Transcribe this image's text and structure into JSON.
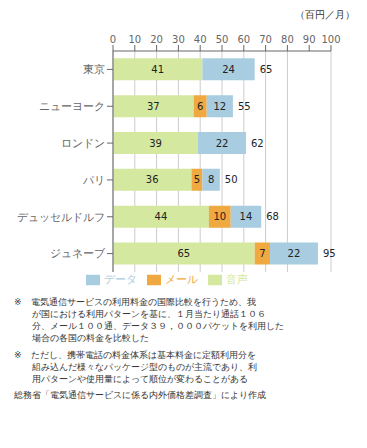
{
  "chart_data": {
    "type": "bar",
    "title": "（百円／月）",
    "orientation": "horizontal",
    "stacked": true,
    "categories": [
      "東京",
      "ニューヨーク",
      "ロンドン",
      "パリ",
      "デュッセルドルフ",
      "ジュネーブ"
    ],
    "series": [
      {
        "name": "音声",
        "color": "#d4e8a0",
        "values": [
          41,
          37,
          39,
          36,
          44,
          65
        ]
      },
      {
        "name": "メール",
        "color": "#f0a840",
        "values": [
          0,
          6,
          0,
          5,
          10,
          7
        ]
      },
      {
        "name": "データ",
        "color": "#a8cce0",
        "values": [
          24,
          12,
          22,
          8,
          14,
          22
        ]
      }
    ],
    "totals": [
      65,
      55,
      62,
      50,
      68,
      95
    ],
    "xlim": [
      0,
      100
    ],
    "xticks": [
      0,
      10,
      20,
      30,
      40,
      50,
      60,
      70,
      80,
      90,
      100
    ],
    "grid": true,
    "legend": "bottom",
    "data_labels": true,
    "footnotes": [
      "※　電気通信サービスの利用料金の国際比較を行うため、我\n　　が国における利用パターンを基に、１月当たり通話１０６\n　　分、メール１００通、データ３９，０００パケットを利用した\n　　場合の各国の料金を比較した",
      "※　ただし、携帯電話の料金体系は基本料金に定額利用分を\n　　組み込んだ様々なパッケージ型のものが主流であり、利\n　　用パターンや使用量によって順位が変わることがある",
      "総務省「電気通信サービスに係る内外価格差調査」により作成"
    ]
  }
}
